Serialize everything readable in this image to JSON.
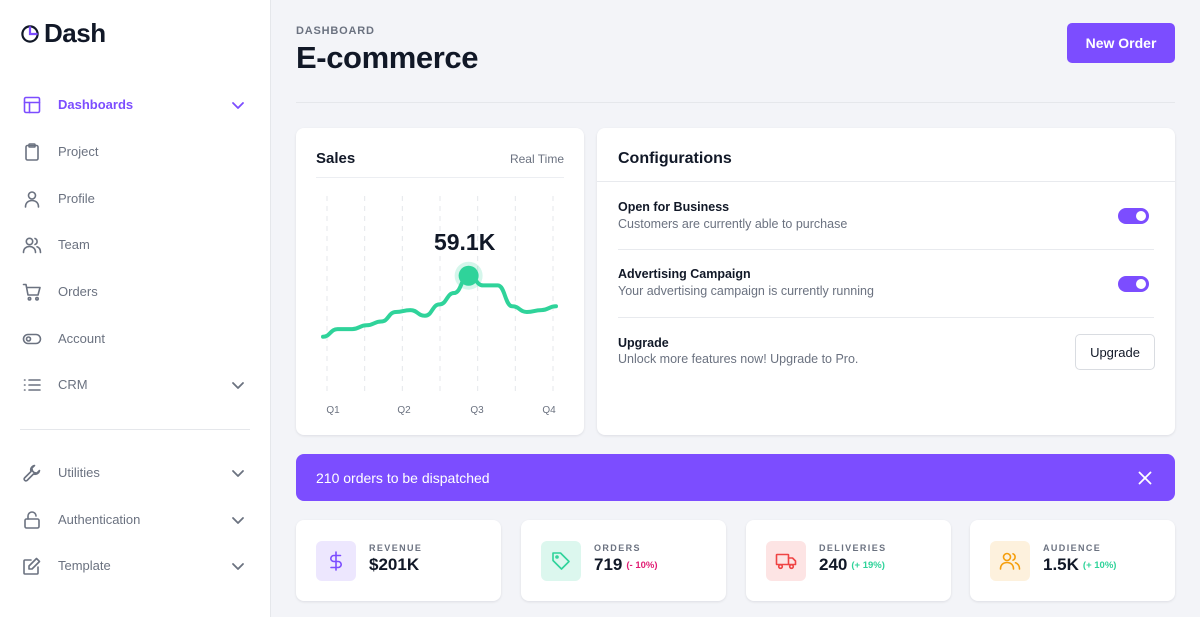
{
  "brand": {
    "name": "Dash",
    "accent": "#7c4dff"
  },
  "sidebar": {
    "items": [
      {
        "label": "Dashboards",
        "icon": "layout-icon",
        "active": true,
        "has_chevron": true
      },
      {
        "label": "Project",
        "icon": "clipboard-icon",
        "active": false,
        "has_chevron": false
      },
      {
        "label": "Profile",
        "icon": "user-icon",
        "active": false,
        "has_chevron": false
      },
      {
        "label": "Team",
        "icon": "users-icon",
        "active": false,
        "has_chevron": false
      },
      {
        "label": "Orders",
        "icon": "cart-icon",
        "active": false,
        "has_chevron": false
      },
      {
        "label": "Account",
        "icon": "toggle-icon",
        "active": false,
        "has_chevron": false
      },
      {
        "label": "CRM",
        "icon": "list-icon",
        "active": false,
        "has_chevron": true
      }
    ],
    "secondary_items": [
      {
        "label": "Utilities",
        "icon": "wrench-icon",
        "has_chevron": true
      },
      {
        "label": "Authentication",
        "icon": "lock-icon",
        "has_chevron": true
      },
      {
        "label": "Template",
        "icon": "edit-icon",
        "has_chevron": true
      }
    ]
  },
  "header": {
    "eyebrow": "DASHBOARD",
    "title": "E-commerce",
    "new_order_label": "New Order"
  },
  "sales": {
    "title": "Sales",
    "mode_label": "Real Time",
    "peak_label": "59.1K"
  },
  "chart_data": {
    "type": "line",
    "title": "Sales",
    "categories": [
      "Q1",
      "Q2",
      "Q3",
      "Q4"
    ],
    "x": [
      0,
      0.25,
      0.5,
      0.75,
      1,
      1.25,
      1.5,
      1.75,
      2,
      2.25,
      2.5,
      2.75,
      3,
      3.25,
      3.5,
      3.75,
      4
    ],
    "series": [
      {
        "values": [
          27,
          31,
          31,
          33,
          35,
          40,
          41,
          38,
          44,
          50,
          59.1,
          54,
          54,
          43,
          40,
          41,
          43
        ]
      }
    ],
    "highlight": {
      "x": 2.5,
      "label": "59.1K"
    },
    "ylim": [
      0,
      100
    ],
    "grid": "vertical-dashed",
    "legend": "none",
    "line_color": "#2fd39a"
  },
  "config": {
    "title": "Configurations",
    "options": [
      {
        "name": "Open for Business",
        "description": "Customers are currently able to purchase",
        "enabled": true
      },
      {
        "name": "Advertising Campaign",
        "description": "Your advertising campaign is currently running",
        "enabled": true
      }
    ],
    "upgrade": {
      "name": "Upgrade",
      "description": "Unlock more features now! Upgrade to Pro.",
      "button_label": "Upgrade"
    }
  },
  "alert": {
    "text": "210 orders to be dispatched",
    "close_icon": "close-icon"
  },
  "stats": [
    {
      "label": "REVENUE",
      "value": "$201K",
      "delta": "",
      "icon": "dollar-icon",
      "tint": "#ede7fe",
      "icon_color": "#7c4dff",
      "delta_color": ""
    },
    {
      "label": "ORDERS",
      "value": "719",
      "delta": "(- 10%)",
      "icon": "tag-icon",
      "tint": "#dcf7ee",
      "icon_color": "#2fd39a",
      "delta_color": "#e11d74"
    },
    {
      "label": "DELIVERIES",
      "value": "240",
      "delta": "(+ 19%)",
      "icon": "truck-icon",
      "tint": "#fde4e4",
      "icon_color": "#ef4444",
      "delta_color": "#2fd39a"
    },
    {
      "label": "AUDIENCE",
      "value": "1.5K",
      "delta": "(+ 10%)",
      "icon": "users-icon",
      "tint": "#fdf1dd",
      "icon_color": "#f59e0b",
      "delta_color": "#2fd39a"
    }
  ]
}
